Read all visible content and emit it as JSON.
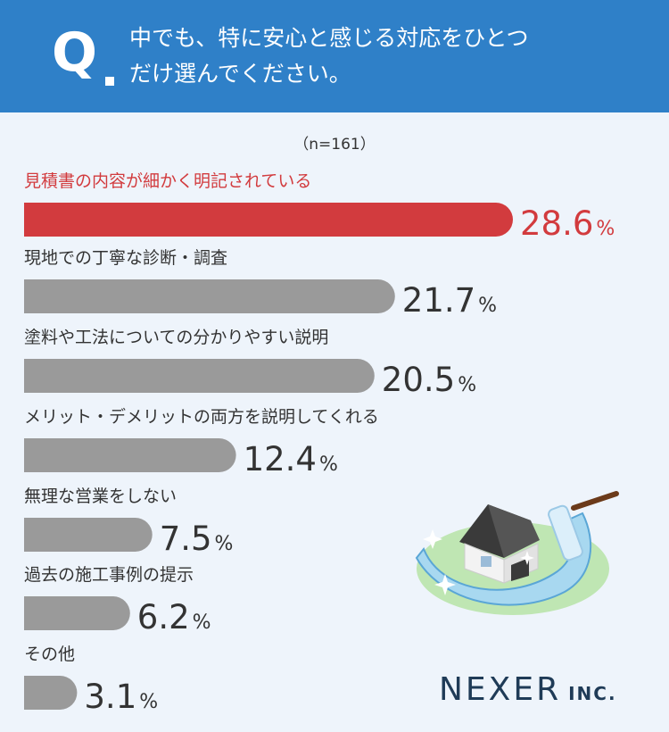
{
  "header": {
    "q_mark": "Q",
    "question_line_1": "中でも、特に安心と感じる対応をひとつ",
    "question_line_2": "だけ選んでください。"
  },
  "sample_size": "（n=161）",
  "chart_data": {
    "type": "bar",
    "orientation": "horizontal",
    "categories": [
      "見積書の内容が細かく明記されている",
      "現地での丁寧な診断・調査",
      "塗料や工法についての分かりやすい説明",
      "メリット・デメリットの両方を説明してくれる",
      "無理な営業をしない",
      "過去の施工事例の提示",
      "その他"
    ],
    "values": [
      28.6,
      21.7,
      20.5,
      12.4,
      7.5,
      6.2,
      3.1
    ],
    "value_labels": [
      "28.6",
      "21.7",
      "20.5",
      "12.4",
      "7.5",
      "6.2",
      "3.1"
    ],
    "unit": "%",
    "highlight_index": 0,
    "colors": {
      "highlight": "#d23b3e",
      "default": "#9a9a9a",
      "label": "#333333"
    }
  },
  "logo": {
    "main": "NEXER",
    "sub": "INC."
  },
  "illustration": {
    "name": "house-paint-roller-illustration"
  }
}
